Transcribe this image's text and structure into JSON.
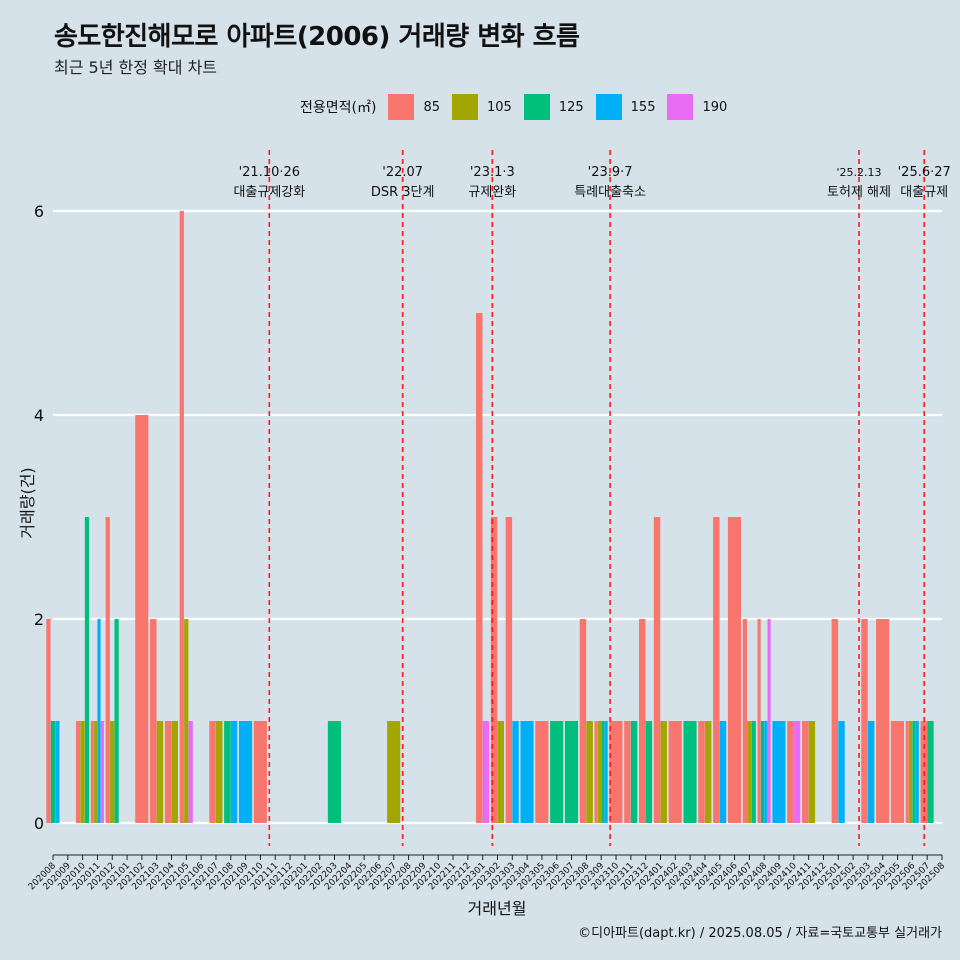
{
  "title": "송도한진해모로 아파트(2006) 거래량 변화 흐름",
  "subtitle": "최근 5년 한정 확대 차트",
  "footer": "©디아파트(dapt.kr) / 2025.08.05 / 자료=국토교통부 실거래가",
  "legend": {
    "title": "전용면적(㎡)",
    "items": [
      {
        "label": "85",
        "color": "#f8766d"
      },
      {
        "label": "105",
        "color": "#a3a500"
      },
      {
        "label": "125",
        "color": "#00bf7d"
      },
      {
        "label": "155",
        "color": "#00b0f6"
      },
      {
        "label": "190",
        "color": "#e76bf3"
      }
    ]
  },
  "chart_data": {
    "type": "bar",
    "xlabel": "거래년월",
    "ylabel": "거래량(건)",
    "ylim": [
      0,
      6.5
    ],
    "yticks": [
      0,
      2,
      4,
      6
    ],
    "categories": [
      "202008",
      "202009",
      "202010",
      "202011",
      "202012",
      "202101",
      "202102",
      "202103",
      "202104",
      "202105",
      "202106",
      "202107",
      "202108",
      "202109",
      "202110",
      "202111",
      "202112",
      "202201",
      "202202",
      "202203",
      "202204",
      "202205",
      "202206",
      "202207",
      "202208",
      "202209",
      "202210",
      "202211",
      "202212",
      "202301",
      "202302",
      "202303",
      "202304",
      "202305",
      "202306",
      "202307",
      "202308",
      "202309",
      "202310",
      "202311",
      "202312",
      "202401",
      "202402",
      "202403",
      "202404",
      "202405",
      "202406",
      "202407",
      "202408",
      "202409",
      "202410",
      "202411",
      "202412",
      "202501",
      "202502",
      "202503",
      "202504",
      "202505",
      "202506",
      "202507",
      "202508"
    ],
    "series": [
      {
        "name": "85",
        "color": "#f8766d",
        "values": [
          2,
          0,
          1,
          1,
          3,
          0,
          4,
          2,
          1,
          6,
          0,
          1,
          0,
          0,
          1,
          0,
          0,
          0,
          0,
          0,
          0,
          0,
          0,
          0,
          0,
          0,
          0,
          0,
          0,
          5,
          3,
          3,
          0,
          1,
          0,
          0,
          2,
          1,
          1,
          1,
          2,
          3,
          1,
          0,
          1,
          3,
          3,
          2,
          2,
          0,
          1,
          1,
          0,
          2,
          0,
          2,
          2,
          1,
          1,
          1,
          0
        ]
      },
      {
        "name": "105",
        "color": "#a3a500",
        "values": [
          0,
          0,
          1,
          1,
          1,
          0,
          0,
          1,
          1,
          2,
          0,
          1,
          0,
          0,
          0,
          0,
          0,
          0,
          0,
          0,
          0,
          0,
          0,
          1,
          0,
          0,
          0,
          0,
          0,
          0,
          1,
          0,
          0,
          0,
          0,
          0,
          1,
          1,
          0,
          0,
          0,
          1,
          0,
          0,
          1,
          0,
          0,
          1,
          0,
          0,
          0,
          1,
          0,
          0,
          0,
          0,
          0,
          0,
          1,
          0,
          0
        ]
      },
      {
        "name": "125",
        "color": "#00bf7d",
        "values": [
          1,
          0,
          3,
          0,
          2,
          0,
          0,
          0,
          0,
          0,
          0,
          0,
          1,
          0,
          0,
          0,
          0,
          0,
          0,
          1,
          0,
          0,
          0,
          0,
          0,
          0,
          0,
          0,
          0,
          0,
          0,
          0,
          0,
          0,
          1,
          1,
          0,
          1,
          0,
          1,
          1,
          0,
          0,
          1,
          0,
          0,
          0,
          1,
          1,
          0,
          0,
          0,
          0,
          0,
          0,
          0,
          0,
          0,
          1,
          1,
          0
        ]
      },
      {
        "name": "155",
        "color": "#00b0f6",
        "values": [
          1,
          0,
          0,
          2,
          0,
          0,
          0,
          0,
          0,
          0,
          0,
          0,
          1,
          1,
          0,
          0,
          0,
          0,
          0,
          0,
          0,
          0,
          0,
          0,
          0,
          0,
          0,
          0,
          0,
          0,
          0,
          1,
          1,
          0,
          0,
          0,
          0,
          1,
          0,
          0,
          0,
          0,
          0,
          0,
          0,
          1,
          0,
          0,
          1,
          1,
          0,
          0,
          0,
          1,
          0,
          1,
          0,
          0,
          1,
          0,
          0
        ]
      },
      {
        "name": "190",
        "color": "#e76bf3",
        "values": [
          0,
          0,
          0,
          1,
          0,
          0,
          0,
          0,
          0,
          1,
          0,
          0,
          0,
          0,
          0,
          0,
          0,
          0,
          0,
          0,
          0,
          0,
          0,
          0,
          0,
          0,
          0,
          0,
          0,
          1,
          0,
          0,
          0,
          0,
          0,
          0,
          0,
          0,
          0,
          0,
          0,
          0,
          0,
          0,
          0,
          0,
          0,
          0,
          2,
          0,
          1,
          0,
          0,
          0,
          0,
          0,
          0,
          0,
          0,
          0,
          0
        ]
      }
    ],
    "annotations": [
      {
        "date": "'21.10·26",
        "label": "대출규제강화",
        "month": 14.6
      },
      {
        "date": "'22.07",
        "label": "DSR 3단계",
        "month": 23.6
      },
      {
        "date": "'23.1·3",
        "label": "규제완화",
        "month": 29.65
      },
      {
        "date": "'23.9·7",
        "label": "특례대출축소",
        "month": 37.6
      },
      {
        "date": "'25.2.13",
        "label": "토허제 해제",
        "month": 54.4
      },
      {
        "date": "'25.6·27",
        "label": "대출규제",
        "month": 58.8
      }
    ],
    "grid": true,
    "legend_position": "top"
  }
}
